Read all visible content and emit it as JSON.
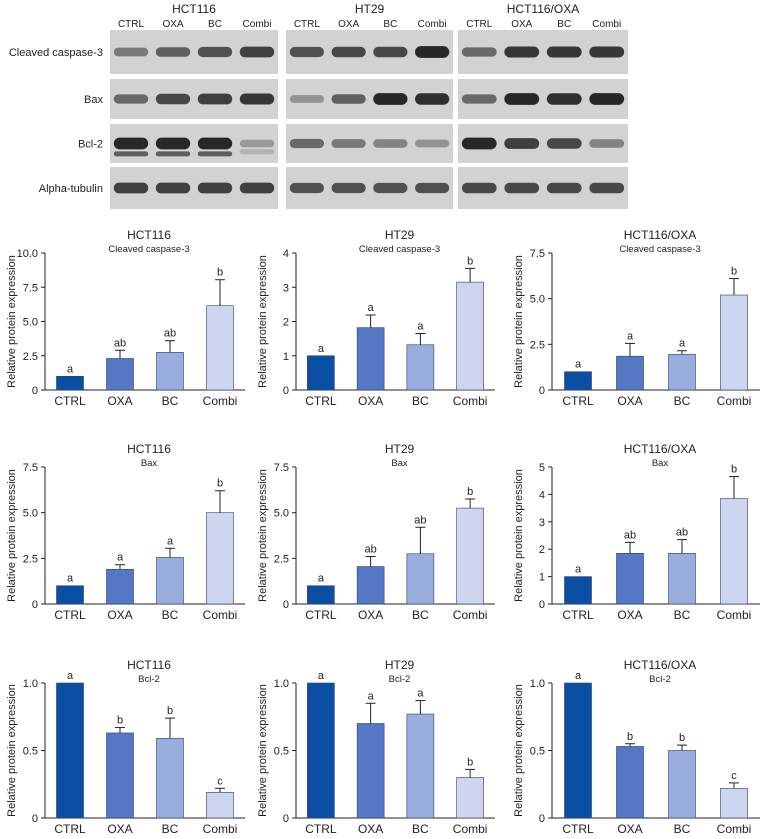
{
  "blots": {
    "lane_labels": [
      "CTRL",
      "OXA",
      "BC",
      "Combi"
    ],
    "row_labels": [
      "Cleaved caspase-3",
      "Bax",
      "Bcl-2",
      "Alpha-tubulin"
    ],
    "panels": [
      {
        "title": "HCT116",
        "rows": [
          {
            "bands": [
              0.45,
              0.6,
              0.7,
              0.8
            ],
            "extra": false
          },
          {
            "bands": [
              0.55,
              0.75,
              0.8,
              0.85
            ],
            "extra": false
          },
          {
            "bands": [
              0.95,
              0.95,
              0.95,
              0.25
            ],
            "extra": true
          },
          {
            "bands": [
              0.8,
              0.8,
              0.8,
              0.8
            ],
            "extra": false
          }
        ]
      },
      {
        "title": "HT29",
        "rows": [
          {
            "bands": [
              0.7,
              0.75,
              0.75,
              0.95
            ],
            "extra": false
          },
          {
            "bands": [
              0.3,
              0.6,
              0.95,
              0.9
            ],
            "extra": false
          },
          {
            "bands": [
              0.55,
              0.45,
              0.4,
              0.3
            ],
            "extra": false
          },
          {
            "bands": [
              0.7,
              0.7,
              0.7,
              0.7
            ],
            "extra": false
          }
        ]
      },
      {
        "title": "HCT116/OXA",
        "rows": [
          {
            "bands": [
              0.55,
              0.85,
              0.85,
              0.85
            ],
            "extra": false
          },
          {
            "bands": [
              0.55,
              0.95,
              0.9,
              0.95
            ],
            "extra": false
          },
          {
            "bands": [
              0.95,
              0.8,
              0.75,
              0.4
            ],
            "extra": false
          },
          {
            "bands": [
              0.75,
              0.75,
              0.75,
              0.75
            ],
            "extra": false
          }
        ]
      }
    ]
  },
  "colors": {
    "bars": [
      "#0a4fa3",
      "#5578c4",
      "#9aaedd",
      "#cdd5ef"
    ],
    "bar_stroke": "#2a3f7a",
    "axis": "#222222"
  },
  "chart_data": [
    {
      "type": "bar",
      "cell_line": "HCT116",
      "protein": "Cleaved caspase-3",
      "title": "HCT116",
      "subtitle": "Cleaved caspase-3",
      "categories": [
        "CTRL",
        "OXA",
        "BC",
        "Combi"
      ],
      "values": [
        1.0,
        2.3,
        2.75,
        6.15
      ],
      "errors": [
        0,
        0.6,
        0.85,
        1.9
      ],
      "letters": [
        "a",
        "ab",
        "ab",
        "b"
      ],
      "ylim": [
        0,
        10
      ],
      "yticks": [
        "0",
        "2.5",
        "5.0",
        "7.5",
        "10.0"
      ],
      "ylabel": "Relative protein expression"
    },
    {
      "type": "bar",
      "cell_line": "HT29",
      "protein": "Cleaved caspase-3",
      "title": "HT29",
      "subtitle": "Cleaved caspase-3",
      "categories": [
        "CTRL",
        "OXA",
        "BC",
        "Combi"
      ],
      "values": [
        1.0,
        1.82,
        1.32,
        3.15
      ],
      "errors": [
        0,
        0.37,
        0.33,
        0.4
      ],
      "letters": [
        "a",
        "a",
        "a",
        "b"
      ],
      "ylim": [
        0,
        4
      ],
      "yticks": [
        "0",
        "1",
        "2",
        "3",
        "4"
      ],
      "ylabel": "Relative protein expression"
    },
    {
      "type": "bar",
      "cell_line": "HCT116/OXA",
      "protein": "Cleaved caspase-3",
      "title": "HCT116/OXA",
      "subtitle": "Cleaved caspase-3",
      "categories": [
        "CTRL",
        "OXA",
        "BC",
        "Combi"
      ],
      "values": [
        1.0,
        1.85,
        1.95,
        5.2
      ],
      "errors": [
        0,
        0.7,
        0.2,
        0.9
      ],
      "letters": [
        "a",
        "a",
        "a",
        "b"
      ],
      "ylim": [
        0,
        7.5
      ],
      "yticks": [
        "0",
        "2.5",
        "5.0",
        "7.5"
      ],
      "ylabel": "Relative protein expression"
    },
    {
      "type": "bar",
      "cell_line": "HCT116",
      "protein": "Bax",
      "title": "HCT116",
      "subtitle": "Bax",
      "categories": [
        "CTRL",
        "OXA",
        "BC",
        "Combi"
      ],
      "values": [
        1.0,
        1.9,
        2.55,
        5.0
      ],
      "errors": [
        0,
        0.25,
        0.5,
        1.2
      ],
      "letters": [
        "a",
        "a",
        "a",
        "b"
      ],
      "ylim": [
        0,
        7.5
      ],
      "yticks": [
        "0",
        "2.5",
        "5.0",
        "7.5"
      ],
      "ylabel": "Relative protein expression"
    },
    {
      "type": "bar",
      "cell_line": "HT29",
      "protein": "Bax",
      "title": "HT29",
      "subtitle": "Bax",
      "categories": [
        "CTRL",
        "OXA",
        "BC",
        "Combi"
      ],
      "values": [
        1.0,
        2.05,
        2.75,
        5.25
      ],
      "errors": [
        0,
        0.55,
        1.45,
        0.5
      ],
      "letters": [
        "a",
        "ab",
        "ab",
        "b"
      ],
      "ylim": [
        0,
        7.5
      ],
      "yticks": [
        "0",
        "2.5",
        "5.0",
        "7.5"
      ],
      "ylabel": "Relative protein expression"
    },
    {
      "type": "bar",
      "cell_line": "HCT116/OXA",
      "protein": "Bax",
      "title": "HCT116/OXA",
      "subtitle": "Bax",
      "categories": [
        "CTRL",
        "OXA",
        "BC",
        "Combi"
      ],
      "values": [
        1.0,
        1.85,
        1.85,
        3.85
      ],
      "errors": [
        0,
        0.4,
        0.5,
        0.8
      ],
      "letters": [
        "a",
        "ab",
        "ab",
        "b"
      ],
      "ylim": [
        0,
        5
      ],
      "yticks": [
        "0",
        "1",
        "2",
        "3",
        "4",
        "5"
      ],
      "ylabel": "Relative protein expression"
    },
    {
      "type": "bar",
      "cell_line": "HCT116",
      "protein": "Bcl-2",
      "title": "HCT116",
      "subtitle": "Bcl-2",
      "categories": [
        "CTRL",
        "OXA",
        "BC",
        "Combi"
      ],
      "values": [
        1.0,
        0.63,
        0.59,
        0.19
      ],
      "errors": [
        0,
        0.04,
        0.15,
        0.03
      ],
      "letters": [
        "a",
        "b",
        "b",
        "c"
      ],
      "ylim": [
        0,
        1.0
      ],
      "yticks": [
        "0",
        "0.5",
        "1.0"
      ],
      "ylabel": "Relative protein expression"
    },
    {
      "type": "bar",
      "cell_line": "HT29",
      "protein": "Bcl-2",
      "title": "HT29",
      "subtitle": "Bcl-2",
      "categories": [
        "CTRL",
        "OXA",
        "BC",
        "Combi"
      ],
      "values": [
        1.0,
        0.7,
        0.77,
        0.3
      ],
      "errors": [
        0,
        0.15,
        0.1,
        0.06
      ],
      "letters": [
        "a",
        "a",
        "a",
        "b"
      ],
      "ylim": [
        0,
        1.0
      ],
      "yticks": [
        "0",
        "0.5",
        "1.0"
      ],
      "ylabel": "Relative protein expression"
    },
    {
      "type": "bar",
      "cell_line": "HCT116/OXA",
      "protein": "Bcl-2",
      "title": "HCT116/OXA",
      "subtitle": "Bcl-2",
      "categories": [
        "CTRL",
        "OXA",
        "BC",
        "Combi"
      ],
      "values": [
        1.0,
        0.53,
        0.5,
        0.22
      ],
      "errors": [
        0,
        0.02,
        0.04,
        0.04
      ],
      "letters": [
        "a",
        "b",
        "b",
        "c"
      ],
      "ylim": [
        0,
        1.0
      ],
      "yticks": [
        "0",
        "0.5",
        "1.0"
      ],
      "ylabel": "Relative protein expression"
    }
  ]
}
